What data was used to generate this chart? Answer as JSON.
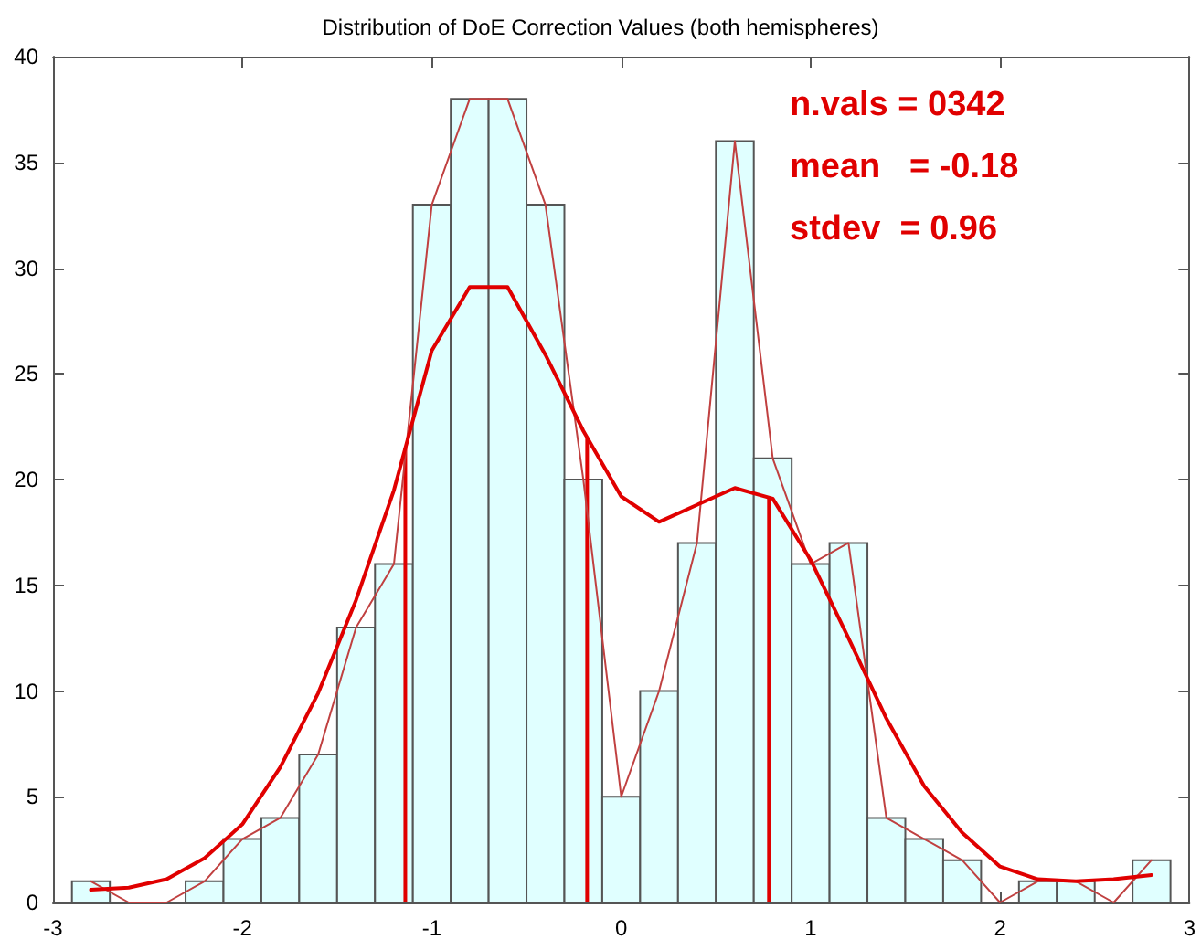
{
  "chart_data": {
    "type": "histogram",
    "title": "Distribution of DoE Correction Values (both hemispheres)",
    "bins": [
      -2.9,
      -2.7,
      -2.5,
      -2.3,
      -2.1,
      -1.9,
      -1.7,
      -1.5,
      -1.3,
      -1.1,
      -0.9,
      -0.7,
      -0.5,
      -0.3,
      -0.1,
      0.1,
      0.3,
      0.5,
      0.7,
      0.9,
      1.1,
      1.3,
      1.5,
      1.7,
      1.9,
      2.1,
      2.3,
      2.5,
      2.7,
      2.9
    ],
    "values": [
      1,
      0,
      0,
      1,
      3,
      4,
      7,
      13,
      16,
      33,
      38,
      38,
      33,
      20,
      5,
      10,
      17,
      36,
      21,
      16,
      17,
      4,
      3,
      2,
      0,
      1,
      1,
      0,
      2
    ],
    "color": "#e0ffff",
    "series": [
      {
        "type": "line",
        "color": "#c04040",
        "x": [
          -2.8,
          -2.6,
          -2.4,
          -2.2,
          -2.0,
          -1.8,
          -1.6,
          -1.4,
          -1.2,
          -1.0,
          -0.8,
          -0.6,
          -0.4,
          -0.2,
          0.0,
          0.2,
          0.4,
          0.6,
          0.8,
          1.0,
          1.2,
          1.4,
          1.6,
          1.8,
          2.0,
          2.2,
          2.4,
          2.6,
          2.8
        ],
        "values": [
          1,
          0,
          0,
          1,
          3,
          4,
          7,
          13,
          16,
          33,
          38,
          38,
          33,
          20,
          5,
          10,
          17,
          36,
          21,
          16,
          17,
          4,
          3,
          2,
          0,
          1,
          1,
          0,
          2
        ]
      },
      {
        "type": "line",
        "color": "#e00000",
        "x": [
          -2.8,
          -2.6,
          -2.4,
          -2.2,
          -2.0,
          -1.8,
          -1.6,
          -1.4,
          -1.2,
          -1.0,
          -0.8,
          -0.6,
          -0.4,
          -0.2,
          0.0,
          0.2,
          0.4,
          0.6,
          0.8,
          1.0,
          1.2,
          1.4,
          1.6,
          1.8,
          2.0,
          2.2,
          2.4,
          2.6,
          2.8
        ],
        "values": [
          0.6,
          0.7,
          1.1,
          2.1,
          3.7,
          6.4,
          9.9,
          14.3,
          19.5,
          26.1,
          29.1,
          29.1,
          25.9,
          22.3,
          19.2,
          18.0,
          18.8,
          19.6,
          19.1,
          16.2,
          12.5,
          8.7,
          5.5,
          3.3,
          1.7,
          1.1,
          1.0,
          1.1,
          1.3
        ]
      }
    ],
    "ref_lines": [
      {
        "axis": "x",
        "value": -1.14,
        "color": "#e00000"
      },
      {
        "axis": "x",
        "value": -0.18,
        "color": "#e00000"
      },
      {
        "axis": "x",
        "value": 0.78,
        "color": "#e00000"
      }
    ],
    "xlim": [
      -3,
      3
    ],
    "xticks": [
      -3,
      -2,
      -1,
      0,
      1,
      2,
      3
    ],
    "ylim": [
      0,
      40
    ],
    "yticks": [
      0,
      5,
      10,
      15,
      20,
      25,
      30,
      35,
      40
    ],
    "grid": false,
    "marker": "none",
    "line_style": "solid",
    "annotations": [
      "n.vals = 0342",
      "mean   = -0.18",
      "stdev  = 0.96"
    ]
  }
}
